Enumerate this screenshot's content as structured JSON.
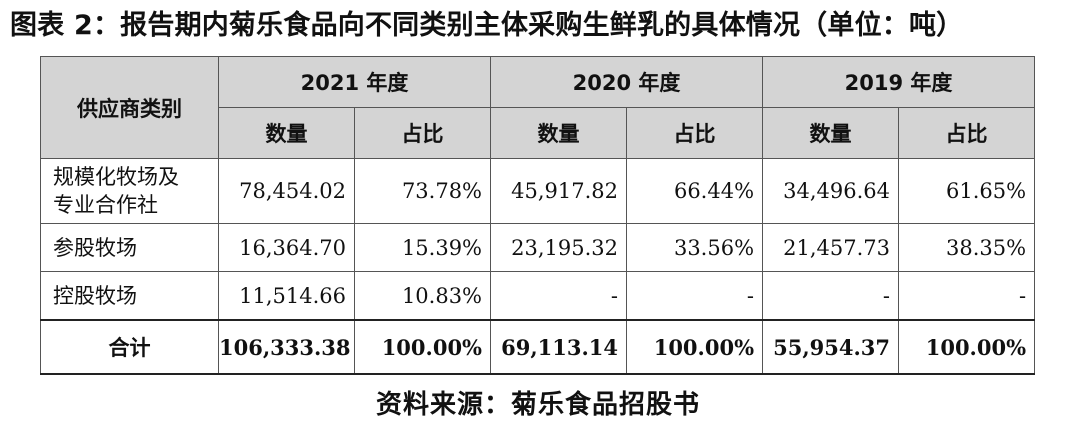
{
  "title": "图表 2：报告期内菊乐食品向不同类别主体采购生鲜乳的具体情况（单位：吨）",
  "table": {
    "category_header": "供应商类别",
    "years": [
      "2021 年度",
      "2020 年度",
      "2019 年度"
    ],
    "sub_headers": [
      "数量",
      "占比",
      "数量",
      "占比",
      "数量",
      "占比"
    ],
    "rows": [
      {
        "category_lines": [
          "规模化牧场及",
          "专业合作社"
        ],
        "cells": [
          "78,454.02",
          "73.78%",
          "45,917.82",
          "66.44%",
          "34,496.64",
          "61.65%"
        ]
      },
      {
        "category_lines": [
          "参股牧场"
        ],
        "cells": [
          "16,364.70",
          "15.39%",
          "23,195.32",
          "33.56%",
          "21,457.73",
          "38.35%"
        ]
      },
      {
        "category_lines": [
          "控股牧场"
        ],
        "cells": [
          "11,514.66",
          "10.83%",
          "-",
          "-",
          "-",
          "-"
        ]
      }
    ],
    "total": {
      "label": "合计",
      "cells": [
        "106,333.38",
        "100.00%",
        "69,113.14",
        "100.00%",
        "55,954.37",
        "100.00%"
      ]
    }
  },
  "source": "资料来源：菊乐食品招股书"
}
